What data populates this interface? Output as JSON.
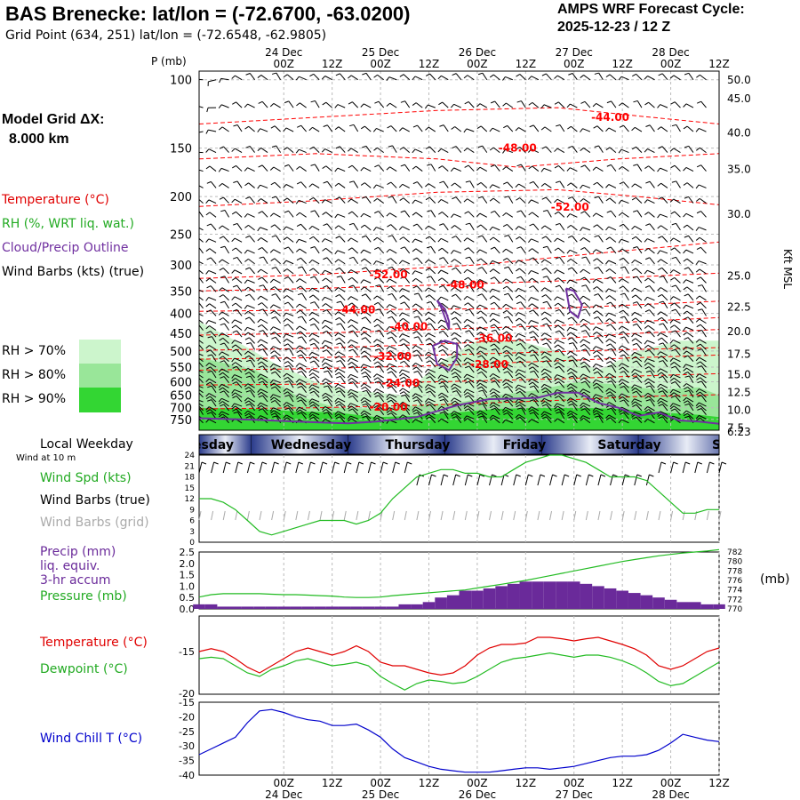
{
  "header": {
    "title": "BAS Brenecke:  lat/lon = (-72.6700, -63.0200)",
    "subtitle": "Grid Point (634, 251) lat/lon = (-72.6548, -62.9805)",
    "cycle_label": "AMPS WRF Forecast Cycle:",
    "cycle_value": "2025-12-23 / 12  Z",
    "model_grid_label": "Model Grid ΔX:",
    "model_grid_value": "8.000 km"
  },
  "legend": {
    "temperature": "Temperature (°C)",
    "rh": "RH (%, WRT liq. wat.)",
    "cloud": "Cloud/Precip Outline",
    "wind_barbs": "Wind Barbs (kts) (true)",
    "rh70": "RH > 70%",
    "rh80": "RH > 80%",
    "rh90": "RH > 90%"
  },
  "colors": {
    "temperature": "#ff0000",
    "rh": "#22bb22",
    "cloud": "#7030a0",
    "wind_chill": "#0000cc",
    "precip": "#6a2a9a",
    "rh70": "#ccf5cc",
    "rh80": "#99e699",
    "rh90": "#33d633"
  },
  "chart_data": [
    {
      "id": "sounding",
      "type": "heatmap",
      "time_axis": {
        "ticks_top": [
          "00Z",
          "12Z",
          "00Z",
          "12Z",
          "00Z",
          "12Z",
          "00Z",
          "12Z",
          "00Z",
          "12Z"
        ],
        "ticks_top_hours": [
          12,
          24,
          36,
          48,
          60,
          72,
          84,
          96,
          108,
          120
        ],
        "dates": [
          "24 Dec",
          "25 Dec",
          "26 Dec",
          "27 Dec",
          "28 Dec"
        ],
        "dates_hours": [
          12,
          36,
          60,
          84,
          108
        ],
        "range_hours": [
          -9,
          120
        ]
      },
      "y_label": "P (mb)",
      "pressure_ticks": [
        100,
        150,
        200,
        250,
        300,
        350,
        400,
        450,
        500,
        550,
        600,
        650,
        700,
        750
      ],
      "right_axis_label": "Kft MSL",
      "height_ticks_kft": [
        "50.0",
        "45.0",
        "40.0",
        "35.0",
        "30.0",
        "25.0",
        "22.5",
        "20.0",
        "17.5",
        "15.0",
        "12.5",
        "10.0",
        "7.5",
        "6.23"
      ],
      "height_tick_pressures": [
        97,
        112,
        137,
        170,
        222,
        320,
        385,
        445,
        510,
        575,
        640,
        710,
        790,
        818
      ],
      "temperature_contours": [
        {
          "label": "-44.00",
          "p": [
            130,
            125,
            120,
            118,
            124,
            130
          ],
          "t": [
            -9,
            20,
            50,
            80,
            100,
            120
          ],
          "label_t": 93,
          "label_p": 125
        },
        {
          "label": "-48.00",
          "p": [
            160,
            155,
            160,
            168,
            160,
            155
          ],
          "t": [
            -9,
            20,
            50,
            70,
            95,
            120
          ],
          "label_t": 70,
          "label_p": 150
        },
        {
          "label": "-52.00",
          "p": [
            325,
            318,
            308,
            300,
            280,
            262
          ],
          "t": [
            -9,
            20,
            40,
            60,
            90,
            120
          ],
          "label_t": 38,
          "label_p": 318
        },
        {
          "label": "-52.00",
          "p": [
            212,
            205,
            195,
            192,
            200,
            210
          ],
          "t": [
            -9,
            20,
            50,
            80,
            100,
            120
          ],
          "label_t": 83,
          "label_p": 213
        },
        {
          "label": "-48.00",
          "p": [
            350,
            345,
            338,
            330,
            322,
            315
          ],
          "t": [
            -9,
            20,
            50,
            80,
            100,
            120
          ],
          "label_t": 57,
          "label_p": 338
        },
        {
          "label": "-44.00",
          "p": [
            395,
            392,
            390,
            388,
            380,
            372
          ],
          "t": [
            -9,
            20,
            50,
            80,
            100,
            120
          ],
          "label_t": 30,
          "label_p": 392
        },
        {
          "label": "-40.00",
          "p": [
            455,
            450,
            440,
            430,
            420,
            410
          ],
          "t": [
            -9,
            20,
            50,
            80,
            100,
            120
          ],
          "label_t": 43,
          "label_p": 433
        },
        {
          "label": "-36.00",
          "p": [
            498,
            492,
            480,
            465,
            450,
            440
          ],
          "t": [
            -9,
            20,
            50,
            80,
            100,
            120
          ],
          "label_t": 64,
          "label_p": 464
        },
        {
          "label": "-32.00",
          "p": [
            525,
            520,
            512,
            502,
            495,
            490
          ],
          "t": [
            -9,
            20,
            50,
            80,
            100,
            120
          ],
          "label_t": 39,
          "label_p": 517
        },
        {
          "label": "-28.00",
          "p": [
            560,
            555,
            545,
            530,
            520,
            512
          ],
          "t": [
            -9,
            20,
            50,
            80,
            100,
            120
          ],
          "label_t": 63,
          "label_p": 542
        },
        {
          "label": "-24.00",
          "p": [
            612,
            608,
            600,
            590,
            580,
            572
          ],
          "t": [
            -9,
            20,
            50,
            80,
            100,
            120
          ],
          "label_t": 41,
          "label_p": 605
        },
        {
          "label": "-20.00",
          "p": [
            705,
            700,
            688,
            670,
            655,
            648
          ],
          "t": [
            -9,
            20,
            50,
            80,
            100,
            120
          ],
          "label_t": 38,
          "label_p": 698
        }
      ],
      "rh_regions": [
        {
          "level": 70,
          "t": [
            -9,
            0,
            10,
            20,
            28,
            35,
            42,
            50,
            60,
            70,
            80,
            90,
            100,
            110,
            120,
            120,
            -9
          ],
          "p": [
            420,
            470,
            540,
            600,
            630,
            640,
            650,
            540,
            470,
            470,
            500,
            560,
            500,
            470,
            470,
            800,
            800
          ]
        },
        {
          "level": 80,
          "t": [
            -9,
            5,
            15,
            25,
            35,
            45,
            55,
            65,
            75,
            85,
            95,
            105,
            115,
            120,
            120,
            -9
          ],
          "p": [
            520,
            560,
            650,
            700,
            705,
            690,
            680,
            650,
            630,
            600,
            610,
            630,
            620,
            650,
            800,
            800
          ]
        },
        {
          "level": 90,
          "t": [
            -9,
            5,
            15,
            25,
            35,
            45,
            55,
            65,
            75,
            85,
            95,
            105,
            115,
            120,
            120,
            -9
          ],
          "p": [
            700,
            705,
            715,
            720,
            740,
            735,
            720,
            705,
            700,
            700,
            705,
            720,
            730,
            740,
            800,
            800
          ]
        }
      ],
      "cloud_outlines": [
        {
          "t": [
            50,
            51,
            52,
            53,
            53,
            52,
            50
          ],
          "p": [
            370,
            385,
            410,
            440,
            420,
            390,
            370
          ]
        },
        {
          "t": [
            82,
            84,
            86,
            85,
            83,
            82
          ],
          "p": [
            345,
            350,
            380,
            410,
            395,
            345
          ]
        },
        {
          "t": [
            49,
            52,
            55,
            55,
            53,
            50,
            49
          ],
          "p": [
            485,
            470,
            480,
            520,
            560,
            540,
            485
          ]
        },
        {
          "t": [
            -9,
            5,
            15,
            28,
            35,
            45,
            55,
            63,
            70,
            75,
            80,
            85,
            90,
            95,
            100,
            105,
            110,
            115,
            120
          ],
          "p": [
            745,
            752,
            760,
            768,
            760,
            740,
            690,
            665,
            663,
            660,
            640,
            640,
            680,
            700,
            735,
            720,
            755,
            760,
            770
          ]
        }
      ]
    },
    {
      "id": "weekday_band",
      "type": "table",
      "title": "Local Weekday",
      "note": "Wind at 10 m",
      "days": [
        "Tuesday",
        "Wednesday",
        "Thursday",
        "Friday",
        "Saturday",
        "Sunday"
      ],
      "visible_labels": [
        "esday",
        "Wednesday",
        "Thursday",
        "Friday",
        "Saturday",
        "S"
      ],
      "day_boundaries_hours": [
        -9,
        4,
        28,
        52,
        76,
        100,
        124
      ]
    },
    {
      "id": "wind",
      "type": "line",
      "labels": [
        "Wind Spd (kts)",
        "Wind Barbs (true)",
        "Wind Barbs (grid)"
      ],
      "y_ticks": [
        0,
        3,
        6,
        9,
        12,
        15,
        18,
        21,
        24
      ],
      "ylim": [
        0,
        24
      ],
      "x": [
        -9,
        -6,
        -3,
        0,
        3,
        6,
        9,
        12,
        15,
        18,
        21,
        24,
        27,
        30,
        33,
        36,
        39,
        42,
        45,
        48,
        51,
        54,
        57,
        60,
        63,
        66,
        69,
        72,
        75,
        78,
        81,
        84,
        87,
        90,
        93,
        96,
        99,
        102,
        105,
        108,
        111,
        114,
        117,
        120
      ],
      "speed": [
        12,
        12,
        11,
        9,
        6,
        3,
        2,
        3,
        4,
        5,
        6,
        6,
        6,
        5,
        6,
        8,
        12,
        15,
        18,
        19,
        20,
        20,
        19,
        19,
        18,
        18,
        20,
        22,
        23,
        24,
        24,
        23,
        22,
        20,
        18,
        18,
        18,
        17,
        14,
        11,
        8,
        8,
        9,
        9
      ]
    },
    {
      "id": "precip_pressure",
      "type": "bar",
      "labels": [
        "Precip (mm)",
        "liq. equiv.",
        "3-hr accum",
        "Pressure (mb)"
      ],
      "precip_ticks": [
        0.0,
        0.5,
        1.0,
        1.5,
        2.0,
        2.5
      ],
      "precip_ylim": [
        0,
        2.5
      ],
      "pressure_ticks": [
        770,
        772,
        774,
        776,
        778,
        780,
        782
      ],
      "pressure_ylim": [
        770,
        782
      ],
      "pressure_unit": "(mb)",
      "x": [
        -9,
        -6,
        -3,
        0,
        3,
        6,
        9,
        12,
        15,
        18,
        21,
        24,
        27,
        30,
        33,
        36,
        39,
        42,
        45,
        48,
        51,
        54,
        57,
        60,
        63,
        66,
        69,
        72,
        75,
        78,
        81,
        84,
        87,
        90,
        93,
        96,
        99,
        102,
        105,
        108,
        111,
        114,
        117,
        120
      ],
      "precip": [
        0.2,
        0.2,
        0.1,
        0.1,
        0.1,
        0.1,
        0.1,
        0.1,
        0.1,
        0.1,
        0.1,
        0.1,
        0.1,
        0.1,
        0.1,
        0.1,
        0.1,
        0.2,
        0.2,
        0.3,
        0.5,
        0.6,
        0.8,
        0.8,
        0.9,
        1.0,
        1.1,
        1.2,
        1.2,
        1.2,
        1.2,
        1.2,
        1.1,
        1.0,
        0.9,
        0.8,
        0.7,
        0.6,
        0.5,
        0.4,
        0.3,
        0.3,
        0.2,
        0.2
      ],
      "pressure": [
        772.5,
        773.0,
        773.2,
        773.2,
        773.2,
        773.2,
        773.1,
        773.0,
        773.0,
        772.9,
        772.8,
        772.7,
        772.5,
        772.4,
        772.4,
        772.5,
        772.8,
        773.0,
        773.2,
        773.4,
        773.6,
        773.8,
        774.0,
        774.4,
        774.8,
        775.2,
        775.6,
        776.0,
        776.5,
        777.0,
        777.5,
        778.0,
        778.5,
        779.0,
        779.5,
        780.0,
        780.4,
        780.8,
        781.2,
        781.5,
        781.8,
        782.0,
        782.2,
        782.5
      ]
    },
    {
      "id": "temperature",
      "type": "line",
      "labels": [
        "Temperature (°C)",
        "Dewpoint (°C)"
      ],
      "y_ticks": [
        -15,
        -20
      ],
      "ylim": [
        -21,
        -10
      ],
      "x": [
        -9,
        -6,
        -3,
        0,
        3,
        6,
        9,
        12,
        15,
        18,
        21,
        24,
        27,
        30,
        33,
        36,
        39,
        42,
        45,
        48,
        51,
        54,
        57,
        60,
        63,
        66,
        69,
        72,
        75,
        78,
        81,
        84,
        87,
        90,
        93,
        96,
        99,
        102,
        105,
        108,
        111,
        114,
        117,
        120
      ],
      "temperature": [
        -15,
        -14.6,
        -15,
        -16,
        -17.2,
        -18,
        -17,
        -16,
        -15,
        -14.5,
        -15,
        -15.5,
        -15,
        -14.2,
        -15,
        -16.5,
        -17,
        -17,
        -17.5,
        -18,
        -18.3,
        -18,
        -17,
        -15.5,
        -14.5,
        -14,
        -14,
        -13.8,
        -13,
        -13,
        -13.2,
        -13.5,
        -13.2,
        -13,
        -13.5,
        -14,
        -14.6,
        -15.5,
        -17,
        -17.5,
        -17,
        -16,
        -15,
        -14.5
      ],
      "dewpoint": [
        -16,
        -15.8,
        -16,
        -17,
        -18,
        -18.5,
        -17.5,
        -17,
        -16.3,
        -16,
        -16.5,
        -17,
        -16.8,
        -16.5,
        -17,
        -18.5,
        -19.5,
        -20.4,
        -19.5,
        -19,
        -19.2,
        -19.5,
        -19.3,
        -18.5,
        -17.5,
        -16.5,
        -16,
        -15.8,
        -15.5,
        -15.2,
        -15.5,
        -15.8,
        -15.5,
        -15.5,
        -15.8,
        -16.3,
        -17,
        -18,
        -19.2,
        -19.8,
        -19.5,
        -18.5,
        -17.5,
        -16.5
      ]
    },
    {
      "id": "wind_chill",
      "type": "line",
      "labels": [
        "Wind Chill T (°C)"
      ],
      "y_ticks": [
        -15,
        -20,
        -25,
        -30,
        -35,
        -40
      ],
      "ylim": [
        -40,
        -15
      ],
      "x": [
        -9,
        -6,
        -3,
        0,
        3,
        6,
        9,
        12,
        15,
        18,
        21,
        24,
        27,
        30,
        33,
        36,
        39,
        42,
        45,
        48,
        51,
        54,
        57,
        60,
        63,
        66,
        69,
        72,
        75,
        78,
        81,
        84,
        87,
        90,
        93,
        96,
        99,
        102,
        105,
        108,
        111,
        114,
        117,
        120
      ],
      "wind_chill": [
        -33,
        -31,
        -29,
        -27,
        -22,
        -18,
        -17.5,
        -18.5,
        -20,
        -21,
        -21.5,
        -23,
        -23,
        -22.5,
        -24.5,
        -27,
        -31,
        -34,
        -35.5,
        -37,
        -38,
        -38.5,
        -39,
        -39,
        -39,
        -38.5,
        -38,
        -37.5,
        -37.5,
        -38,
        -37.5,
        -37,
        -36,
        -35,
        -34,
        -33.5,
        -33.5,
        -33,
        -31.5,
        -29,
        -26,
        -27,
        -28,
        -28.5
      ]
    },
    {
      "id": "bottom_axis",
      "type": "table",
      "ticks": [
        "00Z",
        "12Z",
        "00Z",
        "12Z",
        "00Z",
        "12Z",
        "00Z",
        "12Z",
        "00Z",
        "12Z"
      ],
      "ticks_hours": [
        12,
        24,
        36,
        48,
        60,
        72,
        84,
        96,
        108,
        120
      ],
      "dates": [
        "24 Dec",
        "25 Dec",
        "26 Dec",
        "27 Dec",
        "28 Dec"
      ],
      "dates_hours": [
        12,
        36,
        60,
        84,
        108
      ]
    }
  ]
}
